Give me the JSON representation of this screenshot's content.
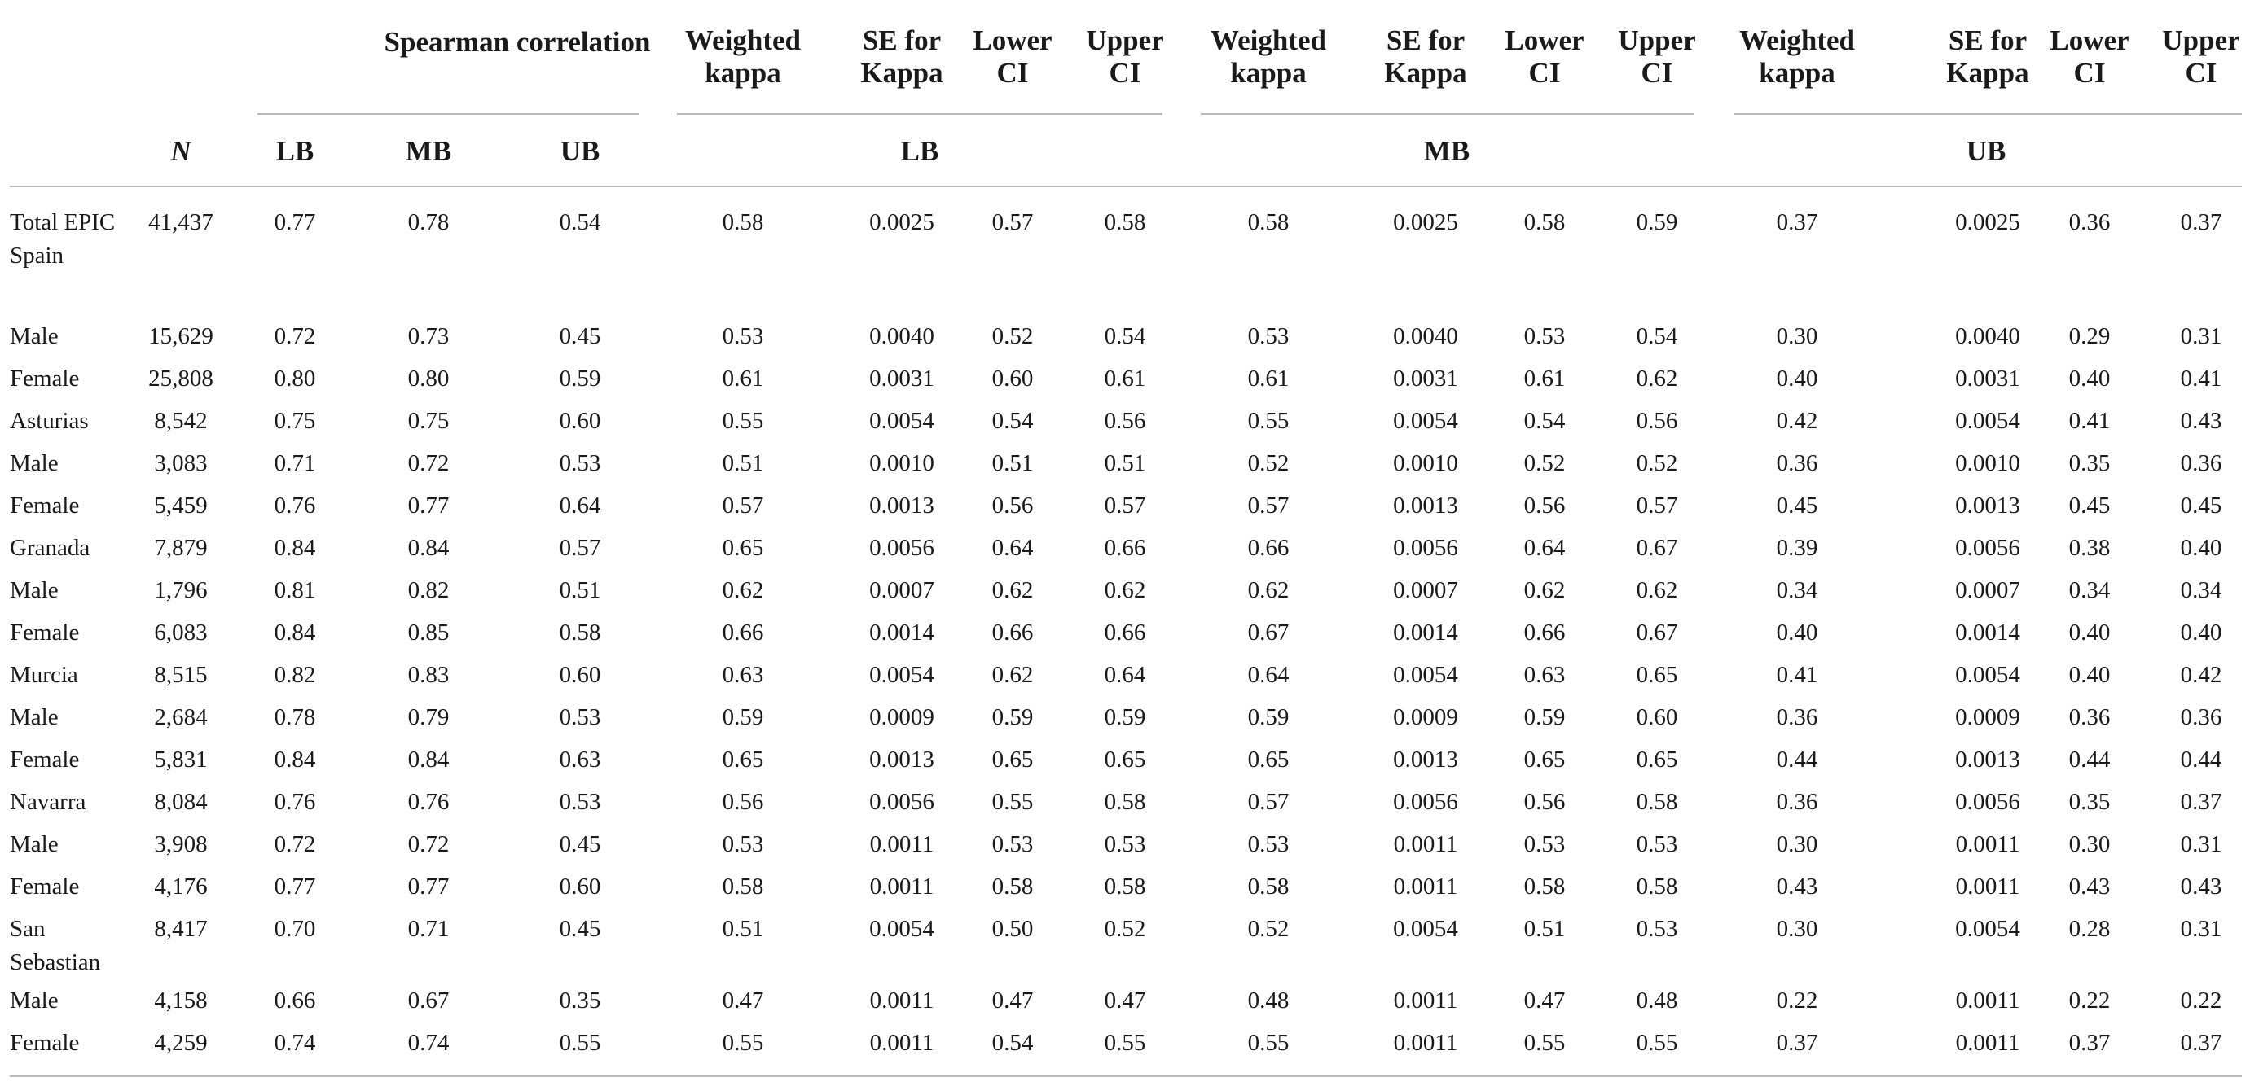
{
  "header": {
    "spearman_title": "Spearman correlation",
    "n_label": "N",
    "spearman_cols": [
      "LB",
      "MB",
      "UB"
    ],
    "kappa_groups": [
      {
        "label": "LB",
        "cols": [
          [
            "Weighted",
            "kappa"
          ],
          [
            "SE for",
            "Kappa"
          ],
          [
            "Lower",
            "CI"
          ],
          [
            "Upper",
            "CI"
          ]
        ]
      },
      {
        "label": "MB",
        "cols": [
          [
            "Weighted",
            "kappa"
          ],
          [
            "SE for",
            "Kappa"
          ],
          [
            "Lower",
            "CI"
          ],
          [
            "Upper",
            "CI"
          ]
        ]
      },
      {
        "label": "UB",
        "cols": [
          [
            "Weighted",
            "kappa"
          ],
          [
            "SE for",
            "Kappa"
          ],
          [
            "Lower",
            "CI"
          ],
          [
            "Upper",
            "CI"
          ]
        ]
      }
    ]
  },
  "rows": [
    {
      "label": "Total EPIC Spain",
      "values": [
        "41,437",
        "0.77",
        "0.78",
        "0.54",
        "0.58",
        "0.0025",
        "0.57",
        "0.58",
        "0.58",
        "0.0025",
        "0.58",
        "0.59",
        "0.37",
        "0.0025",
        "0.36",
        "0.37"
      ]
    },
    {
      "label": "Male",
      "values": [
        "15,629",
        "0.72",
        "0.73",
        "0.45",
        "0.53",
        "0.0040",
        "0.52",
        "0.54",
        "0.53",
        "0.0040",
        "0.53",
        "0.54",
        "0.30",
        "0.0040",
        "0.29",
        "0.31"
      ]
    },
    {
      "label": "Female",
      "values": [
        "25,808",
        "0.80",
        "0.80",
        "0.59",
        "0.61",
        "0.0031",
        "0.60",
        "0.61",
        "0.61",
        "0.0031",
        "0.61",
        "0.62",
        "0.40",
        "0.0031",
        "0.40",
        "0.41"
      ]
    },
    {
      "label": "Asturias",
      "values": [
        "8,542",
        "0.75",
        "0.75",
        "0.60",
        "0.55",
        "0.0054",
        "0.54",
        "0.56",
        "0.55",
        "0.0054",
        "0.54",
        "0.56",
        "0.42",
        "0.0054",
        "0.41",
        "0.43"
      ]
    },
    {
      "label": "Male",
      "values": [
        "3,083",
        "0.71",
        "0.72",
        "0.53",
        "0.51",
        "0.0010",
        "0.51",
        "0.51",
        "0.52",
        "0.0010",
        "0.52",
        "0.52",
        "0.36",
        "0.0010",
        "0.35",
        "0.36"
      ]
    },
    {
      "label": "Female",
      "values": [
        "5,459",
        "0.76",
        "0.77",
        "0.64",
        "0.57",
        "0.0013",
        "0.56",
        "0.57",
        "0.57",
        "0.0013",
        "0.56",
        "0.57",
        "0.45",
        "0.0013",
        "0.45",
        "0.45"
      ]
    },
    {
      "label": "Granada",
      "values": [
        "7,879",
        "0.84",
        "0.84",
        "0.57",
        "0.65",
        "0.0056",
        "0.64",
        "0.66",
        "0.66",
        "0.0056",
        "0.64",
        "0.67",
        "0.39",
        "0.0056",
        "0.38",
        "0.40"
      ]
    },
    {
      "label": "Male",
      "values": [
        "1,796",
        "0.81",
        "0.82",
        "0.51",
        "0.62",
        "0.0007",
        "0.62",
        "0.62",
        "0.62",
        "0.0007",
        "0.62",
        "0.62",
        "0.34",
        "0.0007",
        "0.34",
        "0.34"
      ]
    },
    {
      "label": "Female",
      "values": [
        "6,083",
        "0.84",
        "0.85",
        "0.58",
        "0.66",
        "0.0014",
        "0.66",
        "0.66",
        "0.67",
        "0.0014",
        "0.66",
        "0.67",
        "0.40",
        "0.0014",
        "0.40",
        "0.40"
      ]
    },
    {
      "label": "Murcia",
      "values": [
        "8,515",
        "0.82",
        "0.83",
        "0.60",
        "0.63",
        "0.0054",
        "0.62",
        "0.64",
        "0.64",
        "0.0054",
        "0.63",
        "0.65",
        "0.41",
        "0.0054",
        "0.40",
        "0.42"
      ]
    },
    {
      "label": "Male",
      "values": [
        "2,684",
        "0.78",
        "0.79",
        "0.53",
        "0.59",
        "0.0009",
        "0.59",
        "0.59",
        "0.59",
        "0.0009",
        "0.59",
        "0.60",
        "0.36",
        "0.0009",
        "0.36",
        "0.36"
      ]
    },
    {
      "label": "Female",
      "values": [
        "5,831",
        "0.84",
        "0.84",
        "0.63",
        "0.65",
        "0.0013",
        "0.65",
        "0.65",
        "0.65",
        "0.0013",
        "0.65",
        "0.65",
        "0.44",
        "0.0013",
        "0.44",
        "0.44"
      ]
    },
    {
      "label": "Navarra",
      "values": [
        "8,084",
        "0.76",
        "0.76",
        "0.53",
        "0.56",
        "0.0056",
        "0.55",
        "0.58",
        "0.57",
        "0.0056",
        "0.56",
        "0.58",
        "0.36",
        "0.0056",
        "0.35",
        "0.37"
      ]
    },
    {
      "label": "Male",
      "values": [
        "3,908",
        "0.72",
        "0.72",
        "0.45",
        "0.53",
        "0.0011",
        "0.53",
        "0.53",
        "0.53",
        "0.0011",
        "0.53",
        "0.53",
        "0.30",
        "0.0011",
        "0.30",
        "0.31"
      ]
    },
    {
      "label": "Female",
      "values": [
        "4,176",
        "0.77",
        "0.77",
        "0.60",
        "0.58",
        "0.0011",
        "0.58",
        "0.58",
        "0.58",
        "0.0011",
        "0.58",
        "0.58",
        "0.43",
        "0.0011",
        "0.43",
        "0.43"
      ]
    },
    {
      "label": "San Sebastian",
      "values": [
        "8,417",
        "0.70",
        "0.71",
        "0.45",
        "0.51",
        "0.0054",
        "0.50",
        "0.52",
        "0.52",
        "0.0054",
        "0.51",
        "0.53",
        "0.30",
        "0.0054",
        "0.28",
        "0.31"
      ]
    },
    {
      "label": "Male",
      "values": [
        "4,158",
        "0.66",
        "0.67",
        "0.35",
        "0.47",
        "0.0011",
        "0.47",
        "0.47",
        "0.48",
        "0.0011",
        "0.47",
        "0.48",
        "0.22",
        "0.0011",
        "0.22",
        "0.22"
      ]
    },
    {
      "label": "Female",
      "values": [
        "4,259",
        "0.74",
        "0.74",
        "0.55",
        "0.55",
        "0.0011",
        "0.54",
        "0.55",
        "0.55",
        "0.0011",
        "0.55",
        "0.55",
        "0.37",
        "0.0011",
        "0.37",
        "0.37"
      ]
    }
  ]
}
